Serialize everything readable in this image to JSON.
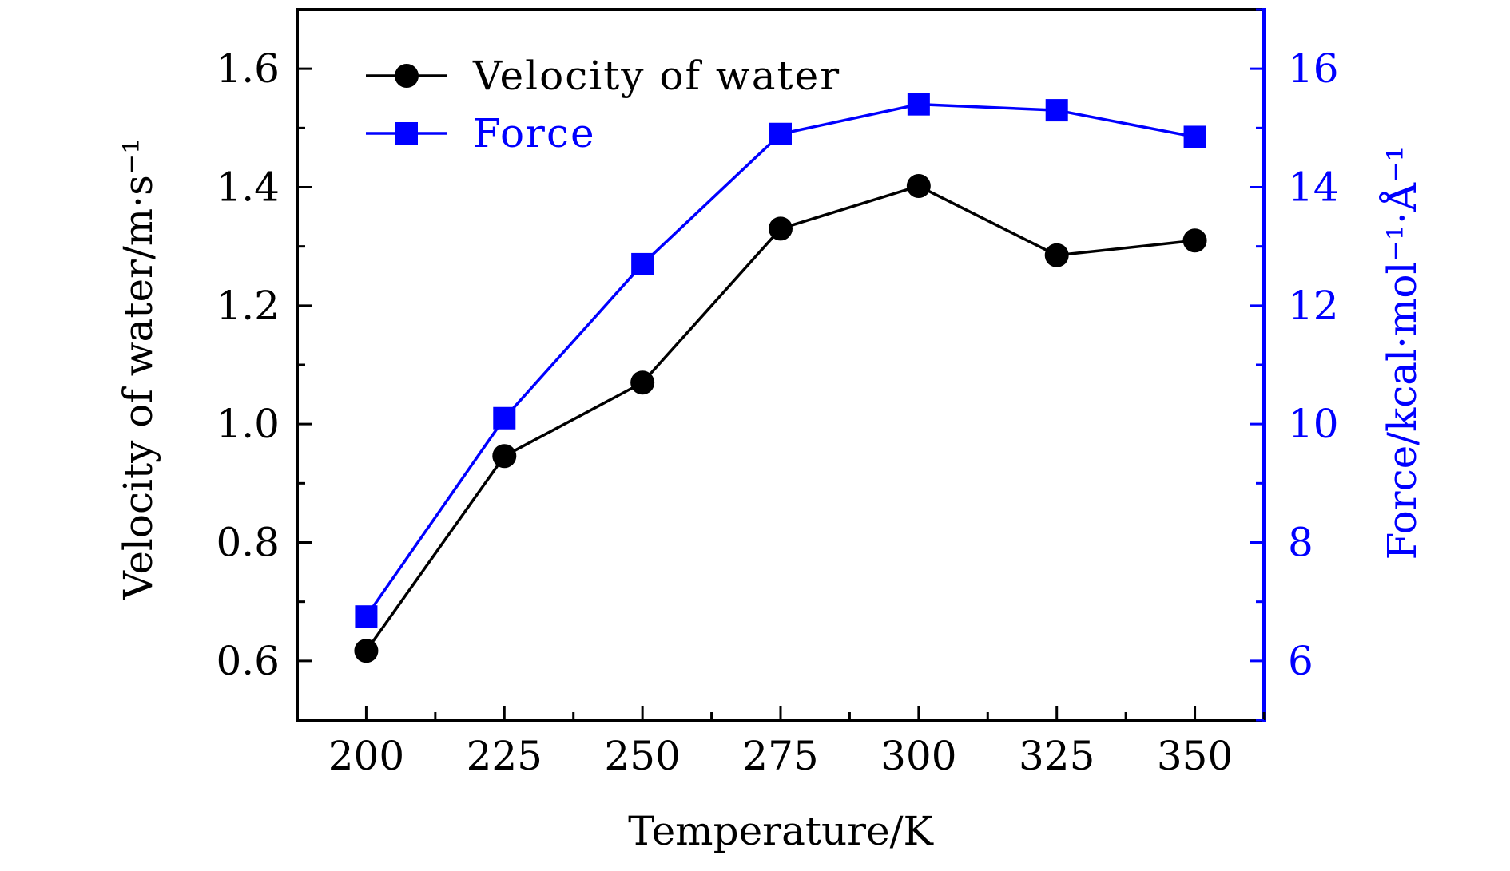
{
  "chart_data": {
    "type": "line",
    "xlabel": "Temperature/K",
    "ylabel_left": "Velocity of water/m·s⁻¹",
    "ylabel_right": "Force/kcal·mol⁻¹·Å⁻¹",
    "x": [
      200,
      225,
      250,
      275,
      300,
      325,
      350
    ],
    "x_ticks": [
      "200",
      "225",
      "250",
      "275",
      "300",
      "325",
      "350"
    ],
    "xlim": [
      187.5,
      362.5
    ],
    "y_left_ticks": [
      "0.6",
      "0.8",
      "1.0",
      "1.2",
      "1.4",
      "1.6"
    ],
    "y_left_lim": [
      0.5,
      1.7
    ],
    "y_right_ticks": [
      "6",
      "8",
      "10",
      "12",
      "14",
      "16"
    ],
    "y_right_lim": [
      5,
      17
    ],
    "series": [
      {
        "name": "Velocity of water",
        "axis": "left",
        "color": "#000000",
        "marker": "circle",
        "values": [
          0.617,
          0.946,
          1.07,
          1.33,
          1.402,
          1.285,
          1.31
        ]
      },
      {
        "name": "Force",
        "axis": "right",
        "color": "#0000ff",
        "marker": "square",
        "values": [
          6.75,
          10.1,
          12.7,
          14.9,
          15.4,
          15.3,
          14.85
        ]
      }
    ],
    "legend_position": "top-left",
    "grid": false
  }
}
